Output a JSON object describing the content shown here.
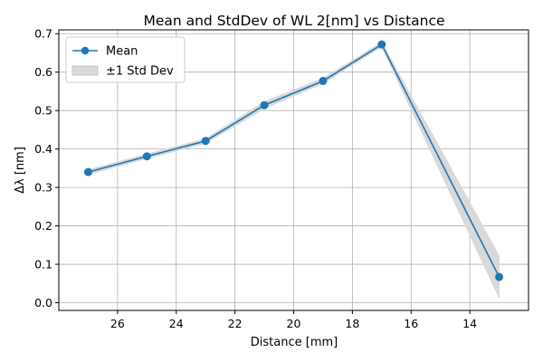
{
  "chart_data": {
    "type": "line",
    "title": "Mean and StdDev of WL 2[nm] vs Distance",
    "xlabel": "Distance [mm]",
    "ylabel": "Δλ [nm]",
    "x_reversed": true,
    "xlim": [
      28.0,
      12.0
    ],
    "ylim": [
      -0.02,
      0.71
    ],
    "x_ticks": [
      26,
      24,
      22,
      20,
      18,
      16,
      14
    ],
    "y_ticks": [
      0.0,
      0.1,
      0.2,
      0.3,
      0.4,
      0.5,
      0.6,
      0.7
    ],
    "grid": true,
    "legend_position": "top-left",
    "series": [
      {
        "name": "Mean",
        "color": "#1f77b4",
        "marker": "circle",
        "x": [
          27,
          25,
          23,
          21,
          19,
          17,
          13
        ],
        "y": [
          0.34,
          0.381,
          0.421,
          0.514,
          0.577,
          0.672,
          0.067
        ]
      }
    ],
    "band": {
      "name": "±1 Std Dev",
      "color": "#d9d9d9",
      "x": [
        27,
        25,
        23,
        21,
        19,
        17,
        13
      ],
      "lower": [
        0.334,
        0.375,
        0.415,
        0.505,
        0.57,
        0.666,
        0.012
      ],
      "upper": [
        0.346,
        0.387,
        0.427,
        0.523,
        0.584,
        0.678,
        0.122
      ]
    }
  }
}
